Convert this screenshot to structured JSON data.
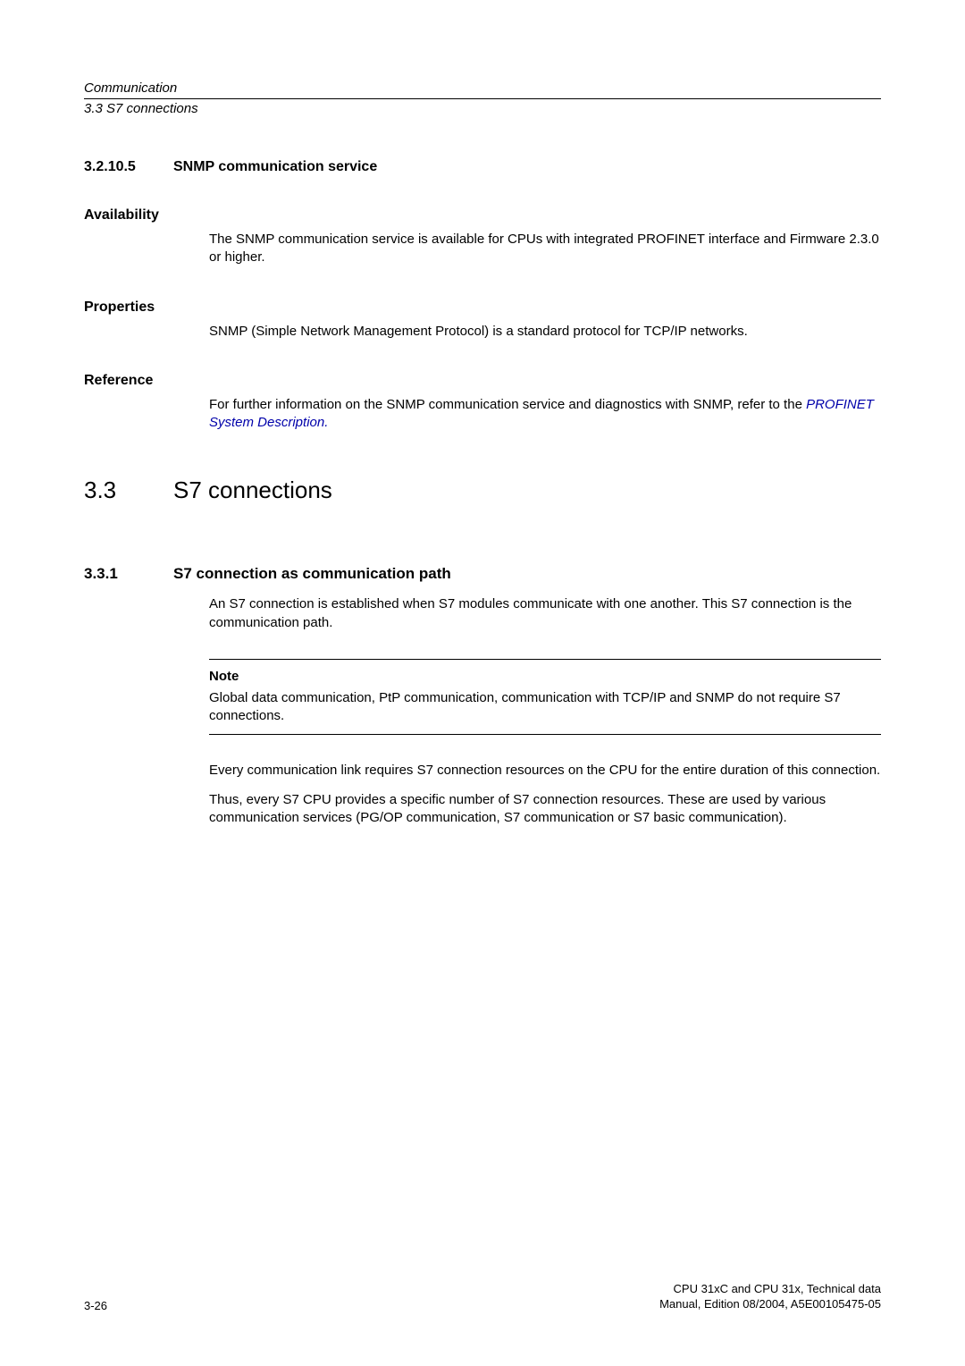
{
  "header": {
    "chapter": "Communication",
    "section": "3.3 S7 connections"
  },
  "sec_32105": {
    "num": "3.2.10.5",
    "title": "SNMP communication service"
  },
  "availability": {
    "label": "Availability",
    "text": "The SNMP communication service is available for CPUs with integrated PROFINET interface and Firmware 2.3.0 or higher."
  },
  "properties": {
    "label": "Properties",
    "text": "SNMP (Simple Network Management Protocol) is a standard protocol for TCP/IP networks."
  },
  "reference": {
    "label": "Reference",
    "text_prefix": "For further information on the SNMP communication service and diagnostics with SNMP, refer to the ",
    "link": "PROFINET System Description."
  },
  "sec_33": {
    "num": "3.3",
    "title": "S7 connections"
  },
  "sec_331": {
    "num": "3.3.1",
    "title": "S7 connection as communication path",
    "p1": "An S7 connection is established when S7 modules communicate with one another. This S7 connection is the communication path."
  },
  "note": {
    "label": "Note",
    "text": "Global data communication, PtP communication, communication with TCP/IP and SNMP do not require S7 connections."
  },
  "para2": "Every communication link requires S7 connection resources on the CPU for the entire duration of this connection.",
  "para3": "Thus, every S7 CPU provides a specific number of S7 connection resources. These are used by various communication services (PG/OP communication, S7 communication or S7 basic communication).",
  "footer": {
    "page": "3-26",
    "line1": "CPU 31xC and CPU 31x, Technical data",
    "line2": "Manual, Edition 08/2004, A5E00105475-05"
  }
}
